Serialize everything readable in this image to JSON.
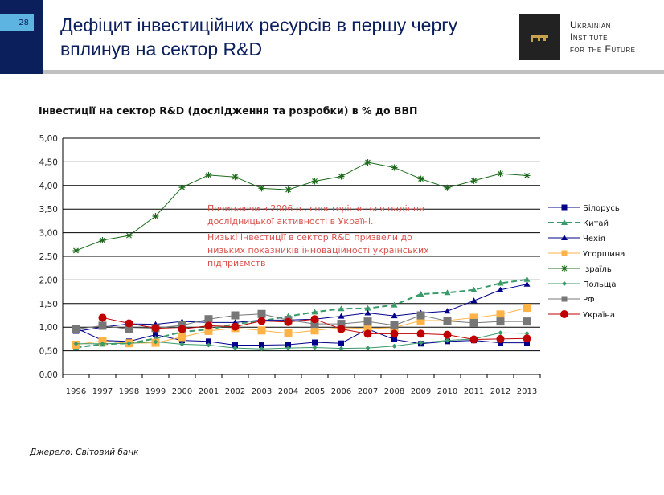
{
  "slide": {
    "page_number": "28",
    "title": "Дефіцит інвестиційних ресурсів в першу чергу вплинув на сектор R&D",
    "logo": {
      "lines": [
        "Ukrainian",
        "Institute",
        "for the Future"
      ],
      "icon": "key-icon"
    }
  },
  "note": {
    "line1": "Починаючи з 2006 р., спостерігається падіння дослідницької активності в Україні.",
    "line2": "Низькі інвестиції в сектор R&D призвели до низьких показників інноваційності українських підприємств"
  },
  "source": "Джерело: Світовий банк",
  "chart_data": {
    "type": "line",
    "title": "Інвестиції на сектор R&D (дослідження та розробки) в % до ВВП",
    "xlabel": "",
    "ylabel": "",
    "ylim": [
      0,
      5
    ],
    "yticks": [
      "0,00",
      "0,50",
      "1,00",
      "1,50",
      "2,00",
      "2,50",
      "3,00",
      "3,50",
      "4,00",
      "4,50",
      "5,00"
    ],
    "grid": true,
    "legend": "right",
    "categories": [
      "1996",
      "1997",
      "1998",
      "1999",
      "2000",
      "2001",
      "2002",
      "2003",
      "2004",
      "2005",
      "2006",
      "2007",
      "2008",
      "2009",
      "2010",
      "2011",
      "2012",
      "2013"
    ],
    "series": [
      {
        "name": "Білорусь",
        "color": "#00008b",
        "marker": "square",
        "dash": false,
        "values": [
          0.98,
          0.72,
          0.7,
          0.84,
          0.72,
          0.7,
          0.62,
          0.62,
          0.63,
          0.68,
          0.66,
          0.96,
          0.74,
          0.65,
          0.7,
          0.72,
          0.67,
          0.67
        ]
      },
      {
        "name": "Китай",
        "color": "#3a9a6a",
        "marker": "triangle",
        "dash": true,
        "values": [
          0.57,
          0.64,
          0.66,
          0.76,
          0.9,
          0.95,
          1.07,
          1.13,
          1.23,
          1.32,
          1.39,
          1.4,
          1.47,
          1.7,
          1.73,
          1.79,
          1.93,
          2.01
        ]
      },
      {
        "name": "Чехія",
        "color": "#00008b",
        "marker": "triangle",
        "dash": false,
        "values": [
          0.91,
          1.0,
          1.07,
          1.06,
          1.12,
          1.1,
          1.1,
          1.15,
          1.15,
          1.17,
          1.23,
          1.3,
          1.24,
          1.3,
          1.34,
          1.56,
          1.79,
          1.91
        ]
      },
      {
        "name": "Угорщина",
        "color": "#ffb347",
        "marker": "square",
        "dash": false,
        "values": [
          0.63,
          0.71,
          0.66,
          0.67,
          0.79,
          0.92,
          0.98,
          0.93,
          0.87,
          0.93,
          0.99,
          0.97,
          0.99,
          1.14,
          1.14,
          1.2,
          1.27,
          1.41
        ]
      },
      {
        "name": "Ізраїль",
        "color": "#1e6b1e",
        "marker": "star",
        "dash": false,
        "values": [
          2.62,
          2.84,
          2.94,
          3.35,
          3.96,
          4.22,
          4.18,
          3.94,
          3.91,
          4.09,
          4.19,
          4.49,
          4.38,
          4.14,
          3.95,
          4.1,
          4.25,
          4.21
        ]
      },
      {
        "name": "Польща",
        "color": "#3a9a6a",
        "marker": "diamond",
        "dash": false,
        "values": [
          0.65,
          0.65,
          0.66,
          0.69,
          0.64,
          0.62,
          0.56,
          0.54,
          0.56,
          0.57,
          0.55,
          0.56,
          0.6,
          0.67,
          0.72,
          0.75,
          0.88,
          0.87
        ]
      },
      {
        "name": "РФ",
        "color": "#777777",
        "marker": "square",
        "dash": false,
        "values": [
          0.96,
          1.03,
          0.96,
          0.98,
          1.04,
          1.17,
          1.25,
          1.28,
          1.15,
          1.07,
          1.07,
          1.12,
          1.04,
          1.25,
          1.13,
          1.09,
          1.12,
          1.12
        ]
      },
      {
        "name": "Україна",
        "color": "#c00000",
        "marker": "circle",
        "dash": false,
        "values": [
          null,
          1.2,
          1.08,
          0.98,
          0.96,
          1.03,
          1.01,
          1.13,
          1.11,
          1.17,
          0.96,
          0.86,
          0.86,
          0.86,
          0.84,
          0.74,
          0.75,
          0.76
        ]
      }
    ]
  }
}
